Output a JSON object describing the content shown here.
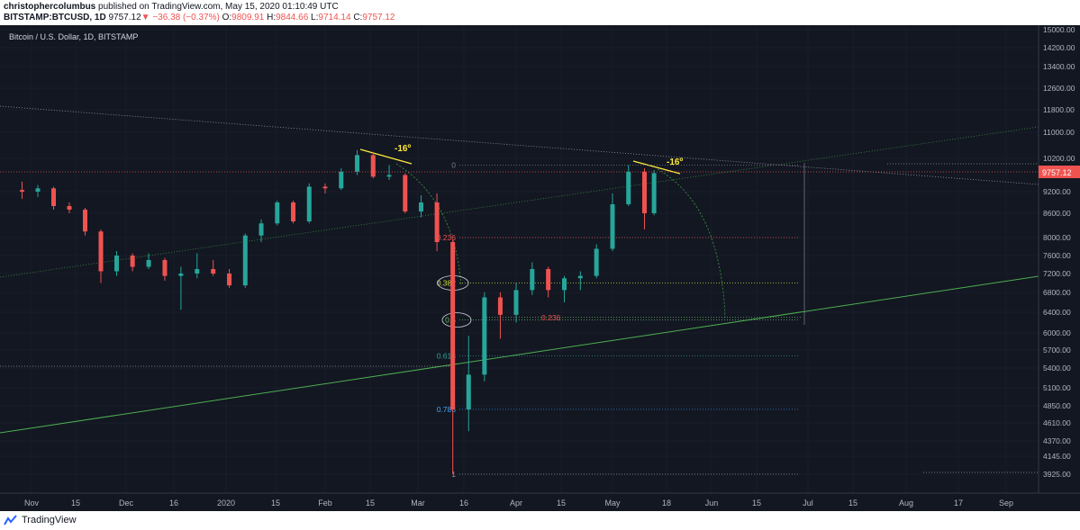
{
  "header": {
    "author": "christophercolumbus",
    "published_text": "published on TradingView.com, May 15, 2020 01:10:49 UTC",
    "symbol": "BITSTAMP:BTCUSD, 1D",
    "last": "9757.12",
    "down_arrow": "▼",
    "change": "−36.38 (−0.37%)",
    "o_label": "O:",
    "o_value": "9809.91",
    "h_label": "H:",
    "h_value": "9844.66",
    "l_label": "L:",
    "l_value": "9714.14",
    "c_label": "C:",
    "c_value": "9757.12"
  },
  "chart_title": "Bitcoin / U.S. Dollar, 1D, BITSTAMP",
  "footer": {
    "brand": "TradingView",
    "logo_icon": "tradingview-logo-icon"
  },
  "colors": {
    "background": "#131722",
    "up": "#26a69a",
    "down": "#ef5350",
    "grid": "#1f2433",
    "price_tag": "#ef5350",
    "angle_line": "#ffeb3b",
    "trendline": "#4caf50",
    "dotted_green": "#388e3c"
  },
  "chart_data": {
    "type": "candlestick",
    "title": "Bitcoin / U.S. Dollar, 1D, BITSTAMP",
    "last_price_label": "9757.12",
    "last_price": 9757.12,
    "y_ticks": [
      "15000.00",
      "14200.00",
      "13400.00",
      "12600.00",
      "11800.00",
      "11000.00",
      "10200.00",
      "9757.12",
      "9200.00",
      "8600.00",
      "8000.00",
      "7600.00",
      "7200.00",
      "6800.00",
      "6400.00",
      "6000.00",
      "5700.00",
      "5400.00",
      "5100.00",
      "4850.00",
      "4610.00",
      "4370.00",
      "4145.00",
      "3925.00"
    ],
    "x_ticks": [
      "Nov",
      "15",
      "Dec",
      "16",
      "2020",
      "15",
      "Feb",
      "15",
      "Mar",
      "16",
      "Apr",
      "15",
      "May",
      "18",
      "Jun",
      "15",
      "Jul",
      "15",
      "Aug",
      "17",
      "Sep"
    ],
    "angle_labels": [
      "-16º",
      "-16º"
    ],
    "fib_labels": [
      "0",
      "0.236",
      "0.382",
      "0.5",
      "0.618",
      "0.786",
      "1",
      "0.236"
    ],
    "candles": [
      {
        "date": "2019-10-29",
        "o": 9250,
        "h": 9500,
        "l": 9000,
        "c": 9200
      },
      {
        "date": "2019-11-03",
        "o": 9200,
        "h": 9400,
        "l": 9050,
        "c": 9300
      },
      {
        "date": "2019-11-08",
        "o": 9300,
        "h": 9350,
        "l": 8700,
        "c": 8800
      },
      {
        "date": "2019-11-13",
        "o": 8800,
        "h": 8900,
        "l": 8600,
        "c": 8700
      },
      {
        "date": "2019-11-18",
        "o": 8700,
        "h": 8750,
        "l": 8050,
        "c": 8150
      },
      {
        "date": "2019-11-23",
        "o": 8150,
        "h": 8200,
        "l": 7000,
        "c": 7250
      },
      {
        "date": "2019-11-28",
        "o": 7250,
        "h": 7700,
        "l": 7150,
        "c": 7600
      },
      {
        "date": "2019-12-03",
        "o": 7600,
        "h": 7650,
        "l": 7250,
        "c": 7350
      },
      {
        "date": "2019-12-08",
        "o": 7350,
        "h": 7650,
        "l": 7300,
        "c": 7500
      },
      {
        "date": "2019-12-13",
        "o": 7500,
        "h": 7550,
        "l": 7050,
        "c": 7150
      },
      {
        "date": "2019-12-18",
        "o": 7150,
        "h": 7350,
        "l": 6450,
        "c": 7200
      },
      {
        "date": "2019-12-23",
        "o": 7200,
        "h": 7650,
        "l": 7100,
        "c": 7300
      },
      {
        "date": "2019-12-28",
        "o": 7300,
        "h": 7500,
        "l": 7150,
        "c": 7200
      },
      {
        "date": "2020-01-02",
        "o": 7200,
        "h": 7300,
        "l": 6900,
        "c": 6950
      },
      {
        "date": "2020-01-07",
        "o": 6950,
        "h": 8100,
        "l": 6900,
        "c": 8050
      },
      {
        "date": "2020-01-12",
        "o": 8050,
        "h": 8450,
        "l": 7900,
        "c": 8350
      },
      {
        "date": "2020-01-17",
        "o": 8350,
        "h": 8950,
        "l": 8300,
        "c": 8900
      },
      {
        "date": "2020-01-22",
        "o": 8900,
        "h": 8950,
        "l": 8350,
        "c": 8400
      },
      {
        "date": "2020-01-27",
        "o": 8400,
        "h": 9450,
        "l": 8350,
        "c": 9350
      },
      {
        "date": "2020-02-01",
        "o": 9350,
        "h": 9450,
        "l": 9150,
        "c": 9300
      },
      {
        "date": "2020-02-06",
        "o": 9300,
        "h": 9900,
        "l": 9250,
        "c": 9800
      },
      {
        "date": "2020-02-11",
        "o": 9800,
        "h": 10450,
        "l": 9700,
        "c": 10300
      },
      {
        "date": "2020-02-16",
        "o": 10300,
        "h": 10400,
        "l": 9600,
        "c": 9650
      },
      {
        "date": "2020-02-21",
        "o": 9650,
        "h": 10000,
        "l": 9550,
        "c": 9700
      },
      {
        "date": "2020-02-26",
        "o": 9700,
        "h": 9750,
        "l": 8600,
        "c": 8650
      },
      {
        "date": "2020-03-02",
        "o": 8650,
        "h": 9100,
        "l": 8500,
        "c": 8900
      },
      {
        "date": "2020-03-07",
        "o": 8900,
        "h": 9150,
        "l": 7700,
        "c": 7900
      },
      {
        "date": "2020-03-12",
        "o": 7900,
        "h": 7950,
        "l": 3900,
        "c": 4800
      },
      {
        "date": "2020-03-17",
        "o": 4800,
        "h": 5950,
        "l": 4500,
        "c": 5300
      },
      {
        "date": "2020-03-22",
        "o": 5300,
        "h": 6800,
        "l": 5200,
        "c": 6700
      },
      {
        "date": "2020-03-27",
        "o": 6700,
        "h": 6800,
        "l": 5900,
        "c": 6350
      },
      {
        "date": "2020-04-01",
        "o": 6350,
        "h": 7000,
        "l": 6200,
        "c": 6850
      },
      {
        "date": "2020-04-06",
        "o": 6850,
        "h": 7450,
        "l": 6750,
        "c": 7300
      },
      {
        "date": "2020-04-11",
        "o": 7300,
        "h": 7350,
        "l": 6700,
        "c": 6850
      },
      {
        "date": "2020-04-16",
        "o": 6850,
        "h": 7150,
        "l": 6600,
        "c": 7100
      },
      {
        "date": "2020-04-21",
        "o": 7100,
        "h": 7250,
        "l": 6850,
        "c": 7150
      },
      {
        "date": "2020-04-26",
        "o": 7150,
        "h": 7850,
        "l": 7100,
        "c": 7750
      },
      {
        "date": "2020-05-01",
        "o": 7750,
        "h": 9150,
        "l": 7700,
        "c": 8850
      },
      {
        "date": "2020-05-06",
        "o": 8850,
        "h": 10000,
        "l": 8800,
        "c": 9800
      },
      {
        "date": "2020-05-11",
        "o": 9800,
        "h": 9900,
        "l": 8200,
        "c": 8600
      },
      {
        "date": "2020-05-14",
        "o": 8600,
        "h": 9850,
        "l": 8550,
        "c": 9757
      }
    ],
    "fib_levels": [
      {
        "label": "0",
        "value": 10000
      },
      {
        "label": "0.236",
        "value": 8000
      },
      {
        "label": "0.382",
        "value": 7000
      },
      {
        "label": "0.5",
        "value": 6250
      },
      {
        "label": "0.618",
        "value": 5600
      },
      {
        "label": "0.786",
        "value": 4800
      },
      {
        "label": "1",
        "value": 3880
      }
    ],
    "fib_levels_2": [
      {
        "label": "0.236",
        "value": 6300
      }
    ]
  }
}
